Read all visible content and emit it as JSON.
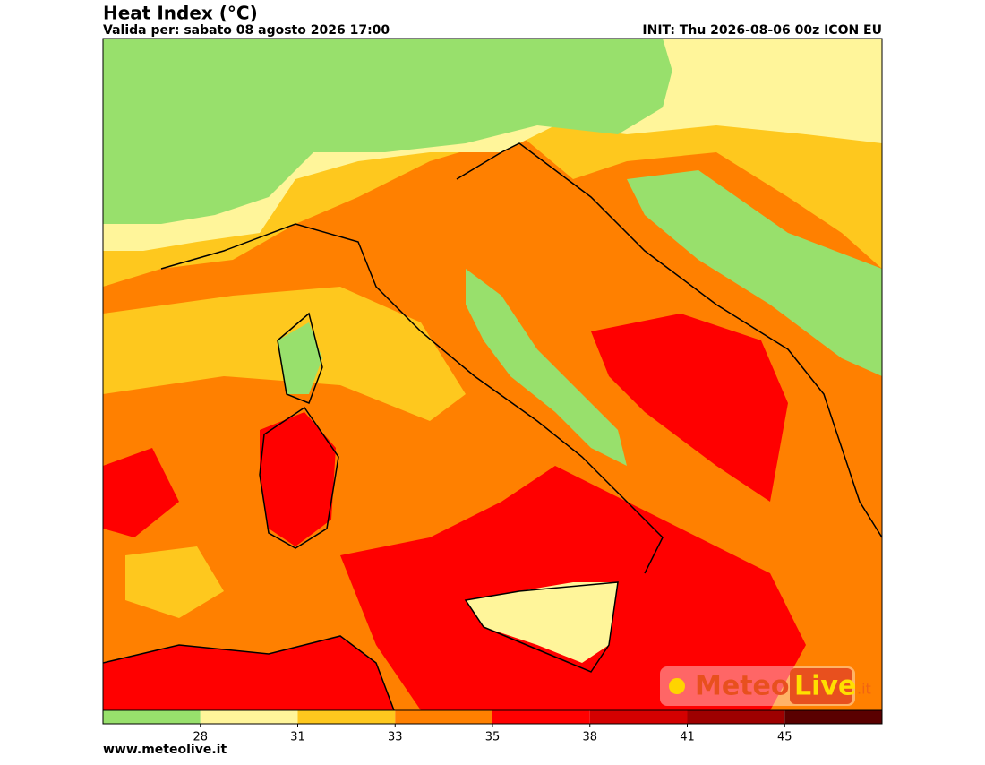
{
  "header": {
    "title": "Heat Index (°C)",
    "subtitle": "Valida per: sabato 08 agosto 2026 17:00",
    "init": "INIT: Thu 2026-08-06 00z ICON EU"
  },
  "colorbar": {
    "colors": [
      "#98e06c",
      "#fff59a",
      "#fec81e",
      "#ff8000",
      "#ff0000",
      "#d40000",
      "#9e0000",
      "#5a0000"
    ],
    "ticks": [
      28,
      31,
      33,
      35,
      38,
      41,
      45
    ]
  },
  "logo": {
    "meteo": "Meteo",
    "live": "Live",
    "suffix": ".it"
  },
  "footer": "www.meteolive.it"
}
